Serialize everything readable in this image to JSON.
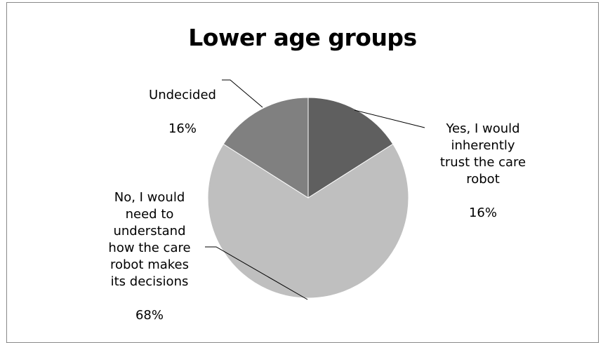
{
  "chart_data": {
    "type": "pie",
    "title": "Lower age groups",
    "slices": [
      {
        "label": "Yes, I would\ninherently\ntrust the care\nrobot",
        "value": 16,
        "percent_label": "16%",
        "color": "#5f5f5f"
      },
      {
        "label": "No, I would\nneed to\nunderstand\nhow the care\nrobot makes\nits decisions",
        "value": 68,
        "percent_label": "68%",
        "color": "#bfbfbf"
      },
      {
        "label": "Undecided",
        "value": 16,
        "percent_label": "16%",
        "color": "#808080"
      }
    ]
  }
}
